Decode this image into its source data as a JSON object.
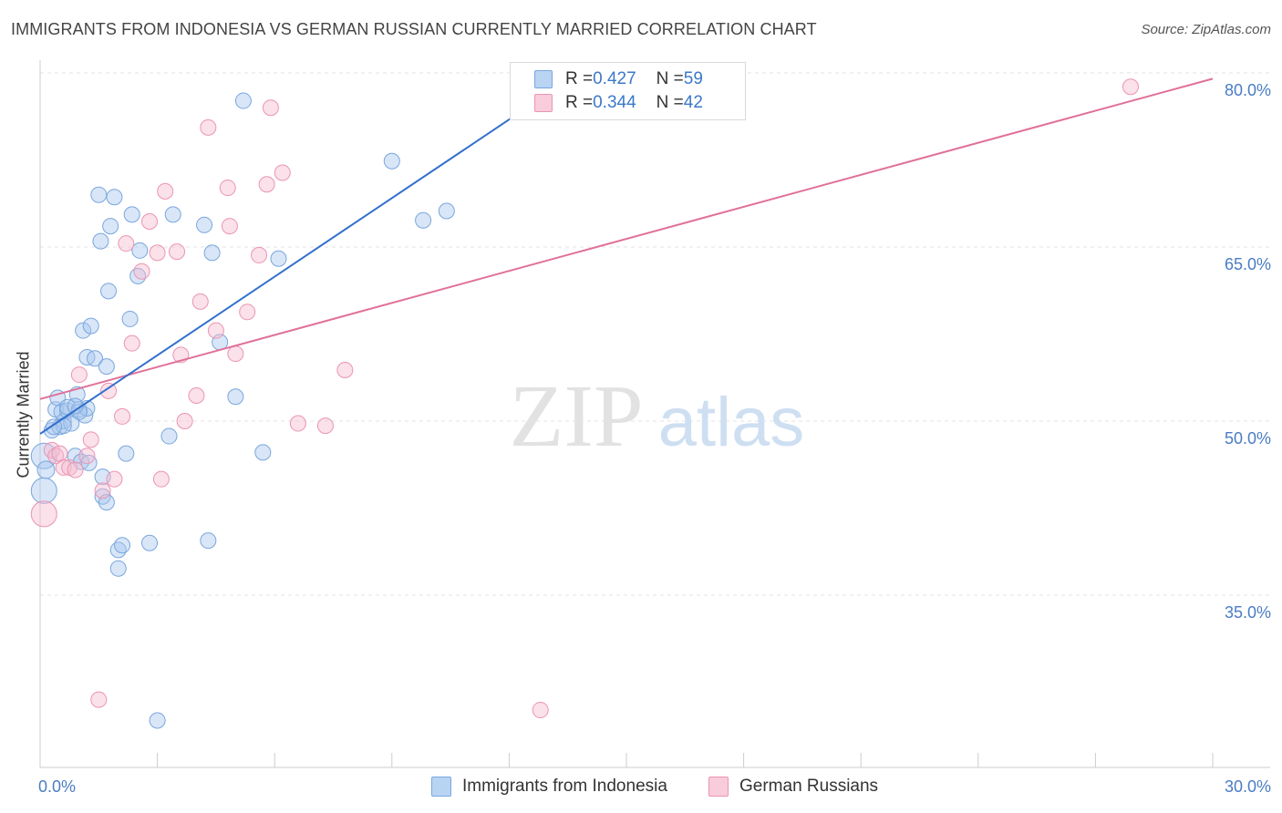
{
  "title": "IMMIGRANTS FROM INDONESIA VS GERMAN RUSSIAN CURRENTLY MARRIED CORRELATION CHART",
  "source": "Source: ZipAtlas.com",
  "watermark": {
    "zip": "ZIP",
    "atlas": "atlas"
  },
  "colors": {
    "blue_fill": "#a9c8ef",
    "blue_stroke": "#7aa6dc",
    "blue_line": "#3370cc",
    "pink_fill": "#f5bcd0",
    "pink_stroke": "#ec94b2",
    "pink_line": "#e0709a",
    "axis_label": "#4a7cc4",
    "grid": "#e3e3e3"
  },
  "legend": {
    "rows": [
      {
        "r_label": "R = ",
        "r_value": "0.427",
        "n_label": "N = ",
        "n_value": "59"
      },
      {
        "r_label": "R = ",
        "r_value": "0.344",
        "n_label": "N = ",
        "n_value": "42"
      }
    ]
  },
  "chart_data": {
    "type": "scatter",
    "title": "IMMIGRANTS FROM INDONESIA VS GERMAN RUSSIAN CURRENTLY MARRIED CORRELATION CHART",
    "xlabel": "",
    "ylabel": "Currently Married",
    "xlim": [
      0,
      30
    ],
    "ylim": [
      22,
      83
    ],
    "x_tick_labels": [
      "0.0%",
      "30.0%"
    ],
    "y_ticks": [
      35,
      50,
      65,
      80
    ],
    "y_tick_labels": [
      "35.0%",
      "50.0%",
      "65.0%",
      "80.0%"
    ],
    "grid": true,
    "legend_position": "top-center",
    "series": [
      {
        "name": "Immigrants from Indonesia",
        "color": "#a9c8ef",
        "r": 0.427,
        "n": 59,
        "trend": {
          "x": [
            0.0,
            14.0
          ],
          "y": [
            48.9,
            80.5
          ]
        },
        "points": [
          [
            0.1,
            47.0
          ],
          [
            0.15,
            45.8
          ],
          [
            0.1,
            44.0
          ],
          [
            0.3,
            49.2
          ],
          [
            0.4,
            51.0
          ],
          [
            0.45,
            52.0
          ],
          [
            0.5,
            49.5
          ],
          [
            0.6,
            50.0
          ],
          [
            0.55,
            50.8
          ],
          [
            0.7,
            50.9
          ],
          [
            0.7,
            51.2
          ],
          [
            0.8,
            49.8
          ],
          [
            0.9,
            47.0
          ],
          [
            0.95,
            52.3
          ],
          [
            1.0,
            51.0
          ],
          [
            1.05,
            46.5
          ],
          [
            1.15,
            50.5
          ],
          [
            1.2,
            51.1
          ],
          [
            1.25,
            46.4
          ],
          [
            1.1,
            57.8
          ],
          [
            1.2,
            55.5
          ],
          [
            1.3,
            58.2
          ],
          [
            1.4,
            55.4
          ],
          [
            1.5,
            69.5
          ],
          [
            1.55,
            65.5
          ],
          [
            1.6,
            43.5
          ],
          [
            1.6,
            45.2
          ],
          [
            1.7,
            43.0
          ],
          [
            1.7,
            54.7
          ],
          [
            1.75,
            61.2
          ],
          [
            1.8,
            66.8
          ],
          [
            1.9,
            69.3
          ],
          [
            2.0,
            37.3
          ],
          [
            2.0,
            38.9
          ],
          [
            2.1,
            39.3
          ],
          [
            2.2,
            47.2
          ],
          [
            2.3,
            58.8
          ],
          [
            2.35,
            67.8
          ],
          [
            2.5,
            62.5
          ],
          [
            2.55,
            64.7
          ],
          [
            2.8,
            39.5
          ],
          [
            3.0,
            24.2
          ],
          [
            3.3,
            48.7
          ],
          [
            3.4,
            67.8
          ],
          [
            4.2,
            66.9
          ],
          [
            4.3,
            39.7
          ],
          [
            4.4,
            64.5
          ],
          [
            4.6,
            56.8
          ],
          [
            5.0,
            52.1
          ],
          [
            5.2,
            77.6
          ],
          [
            5.7,
            47.3
          ],
          [
            6.1,
            64.0
          ],
          [
            9.0,
            72.4
          ],
          [
            9.8,
            67.3
          ],
          [
            10.4,
            68.1
          ],
          [
            0.6,
            49.6
          ],
          [
            1.0,
            50.8
          ],
          [
            0.9,
            51.3
          ],
          [
            0.35,
            49.5
          ]
        ]
      },
      {
        "name": "German Russians",
        "color": "#f5bcd0",
        "r": 0.344,
        "n": 42,
        "trend": {
          "x": [
            0.0,
            30.0
          ],
          "y": [
            51.9,
            79.5
          ]
        },
        "points": [
          [
            0.1,
            42.0
          ],
          [
            0.3,
            47.5
          ],
          [
            0.4,
            47.0
          ],
          [
            0.5,
            47.2
          ],
          [
            0.6,
            46.0
          ],
          [
            0.75,
            46.0
          ],
          [
            0.9,
            45.8
          ],
          [
            1.0,
            54.0
          ],
          [
            1.2,
            47.0
          ],
          [
            1.3,
            48.4
          ],
          [
            1.5,
            26.0
          ],
          [
            1.6,
            44.0
          ],
          [
            1.75,
            52.6
          ],
          [
            1.9,
            45.0
          ],
          [
            2.1,
            50.4
          ],
          [
            2.2,
            65.3
          ],
          [
            2.35,
            56.7
          ],
          [
            2.6,
            62.9
          ],
          [
            2.8,
            67.2
          ],
          [
            3.0,
            64.5
          ],
          [
            3.1,
            45.0
          ],
          [
            3.2,
            69.8
          ],
          [
            3.5,
            64.6
          ],
          [
            3.6,
            55.7
          ],
          [
            3.7,
            50.0
          ],
          [
            4.0,
            52.2
          ],
          [
            4.1,
            60.3
          ],
          [
            4.3,
            75.3
          ],
          [
            4.5,
            57.8
          ],
          [
            4.8,
            70.1
          ],
          [
            4.85,
            66.8
          ],
          [
            5.0,
            55.8
          ],
          [
            5.3,
            59.4
          ],
          [
            5.6,
            64.3
          ],
          [
            5.8,
            70.4
          ],
          [
            5.9,
            77.0
          ],
          [
            6.2,
            71.4
          ],
          [
            6.6,
            49.8
          ],
          [
            7.3,
            49.6
          ],
          [
            7.8,
            54.4
          ],
          [
            12.8,
            25.1
          ],
          [
            27.9,
            78.8
          ]
        ]
      }
    ]
  }
}
